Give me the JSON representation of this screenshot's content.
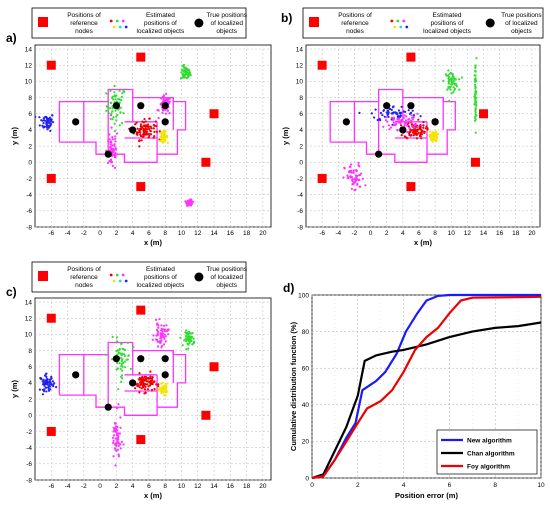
{
  "legend": {
    "reference_nodes": [
      "Positions of",
      "reference",
      "nodes"
    ],
    "estimated_positions": [
      "Estimated",
      "positions of",
      "localized objects"
    ],
    "true_positions": [
      "True positions",
      "of localized",
      "objects"
    ]
  },
  "map_axes": {
    "xlabel": "x (m)",
    "ylabel": "y (m)",
    "xticks": [
      "-6",
      "-4",
      "-2",
      "0",
      "2",
      "4",
      "6",
      "8",
      "10",
      "12",
      "14",
      "16",
      "18",
      "20"
    ],
    "yticks": [
      "-8",
      "-6",
      "-4",
      "-2",
      "0",
      "2",
      "4",
      "6",
      "8",
      "10",
      "12",
      "14"
    ],
    "xlim": [
      -8,
      21
    ],
    "ylim": [
      -8,
      14.5
    ]
  },
  "panels": [
    {
      "letter": "a)"
    },
    {
      "letter": "b)"
    },
    {
      "letter": "c)"
    },
    {
      "letter": "d)"
    }
  ],
  "colors": {
    "reference": "#ff0000",
    "true": "#000000",
    "floorplan": "#ff33ff",
    "green": "#33dd33",
    "blue": "#2222ee",
    "red": "#ee0000",
    "yellow": "#f2e600",
    "cyan": "#22dddd",
    "magenta": "#ff33ff"
  },
  "chart_data": [
    {
      "type": "scatter",
      "panel": "a)",
      "xlabel": "x (m)",
      "ylabel": "y (m)",
      "xlim": [
        -8,
        21
      ],
      "ylim": [
        -8,
        14.5
      ],
      "reference_nodes": [
        [
          -6,
          12
        ],
        [
          5,
          13
        ],
        [
          14,
          6
        ],
        [
          13,
          0
        ],
        [
          -6,
          -2
        ],
        [
          5,
          -3
        ]
      ],
      "true_positions": [
        [
          -3,
          5
        ],
        [
          2,
          7
        ],
        [
          5,
          7
        ],
        [
          8,
          7
        ],
        [
          1,
          1
        ],
        [
          4,
          4
        ],
        [
          8,
          5
        ]
      ],
      "estimated_clusters": [
        {
          "color": "green",
          "center": [
            2,
            7
          ],
          "spread": [
            1,
            2
          ]
        },
        {
          "color": "green",
          "center": [
            10.5,
            11
          ],
          "spread": [
            0.5,
            0.7
          ]
        },
        {
          "color": "blue",
          "center": [
            -6.5,
            5
          ],
          "spread": [
            0.7,
            0.9
          ]
        },
        {
          "color": "red",
          "center": [
            5.5,
            4
          ],
          "spread": [
            1.1,
            1
          ]
        },
        {
          "color": "yellow",
          "center": [
            7.8,
            3.2
          ],
          "spread": [
            0.4,
            0.5
          ]
        },
        {
          "color": "magenta",
          "center": [
            1.5,
            1.5
          ],
          "spread": [
            0.6,
            2.2
          ]
        },
        {
          "color": "magenta",
          "center": [
            8,
            7
          ],
          "spread": [
            0.6,
            1
          ]
        },
        {
          "color": "magenta",
          "center": [
            11,
            -5
          ],
          "spread": [
            0.3,
            0.3
          ]
        }
      ]
    },
    {
      "type": "scatter",
      "panel": "b)",
      "xlabel": "x (m)",
      "ylabel": "y (m)",
      "xlim": [
        -8,
        21
      ],
      "ylim": [
        -8,
        14.5
      ],
      "reference_nodes": [
        [
          -6,
          12
        ],
        [
          5,
          13
        ],
        [
          14,
          6
        ],
        [
          13,
          0
        ],
        [
          -6,
          -2
        ],
        [
          5,
          -3
        ]
      ],
      "true_positions": [
        [
          -3,
          5
        ],
        [
          2,
          7
        ],
        [
          5,
          7
        ],
        [
          8,
          5
        ],
        [
          1,
          1
        ],
        [
          4,
          4
        ],
        [
          8,
          5
        ]
      ],
      "estimated_clusters": [
        {
          "color": "green",
          "center": [
            10,
            10
          ],
          "spread": [
            0.7,
            1
          ]
        },
        {
          "color": "green",
          "center": [
            13,
            8
          ],
          "spread": [
            0.1,
            4
          ]
        },
        {
          "color": "blue",
          "center": [
            3,
            6
          ],
          "spread": [
            2.5,
            0.8
          ]
        },
        {
          "color": "red",
          "center": [
            5.5,
            4
          ],
          "spread": [
            1.1,
            0.9
          ]
        },
        {
          "color": "yellow",
          "center": [
            7.8,
            3.2
          ],
          "spread": [
            0.4,
            0.5
          ]
        },
        {
          "color": "magenta",
          "center": [
            -2,
            -2
          ],
          "spread": [
            1,
            1.5
          ]
        },
        {
          "color": "magenta",
          "center": [
            4,
            5
          ],
          "spread": [
            1.8,
            0.8
          ]
        }
      ]
    },
    {
      "type": "scatter",
      "panel": "c)",
      "xlabel": "x (m)",
      "ylabel": "y (m)",
      "xlim": [
        -8,
        21
      ],
      "ylim": [
        -8,
        14.5
      ],
      "reference_nodes": [
        [
          -6,
          12
        ],
        [
          5,
          13
        ],
        [
          14,
          6
        ],
        [
          13,
          0
        ],
        [
          -6,
          -2
        ],
        [
          5,
          -3
        ]
      ],
      "true_positions": [
        [
          -3,
          5
        ],
        [
          2,
          7
        ],
        [
          5,
          7
        ],
        [
          8,
          7
        ],
        [
          1,
          1
        ],
        [
          4,
          4
        ],
        [
          8,
          5
        ]
      ],
      "estimated_clusters": [
        {
          "color": "green",
          "center": [
            2.5,
            7
          ],
          "spread": [
            1,
            2
          ]
        },
        {
          "color": "green",
          "center": [
            11,
            9.5
          ],
          "spread": [
            0.5,
            0.8
          ]
        },
        {
          "color": "blue",
          "center": [
            -6.5,
            4
          ],
          "spread": [
            0.7,
            0.8
          ]
        },
        {
          "color": "red",
          "center": [
            5.5,
            4
          ],
          "spread": [
            1,
            0.9
          ]
        },
        {
          "color": "yellow",
          "center": [
            7.8,
            3.2
          ],
          "spread": [
            0.4,
            0.5
          ]
        },
        {
          "color": "magenta",
          "center": [
            2,
            -3
          ],
          "spread": [
            0.5,
            2.5
          ]
        },
        {
          "color": "magenta",
          "center": [
            7.5,
            10
          ],
          "spread": [
            0.7,
            1.2
          ]
        }
      ]
    },
    {
      "type": "line",
      "panel": "d)",
      "xlabel": "Position error (m)",
      "ylabel": "Cumulative distribution function (%)",
      "xlim": [
        0,
        10
      ],
      "ylim": [
        0,
        100
      ],
      "xticks": [
        "0",
        "2",
        "4",
        "6",
        "8",
        "10"
      ],
      "yticks": [
        "0",
        "20",
        "40",
        "60",
        "80",
        "100"
      ],
      "grid": true,
      "legend_position": "bottom-right",
      "series": [
        {
          "name": "New algorithm",
          "color": "#1a1aff",
          "points": [
            [
              0,
              0
            ],
            [
              0.5,
              1
            ],
            [
              1,
              10
            ],
            [
              1.5,
              22
            ],
            [
              1.9,
              30
            ],
            [
              2.2,
              48
            ],
            [
              2.8,
              53
            ],
            [
              3.2,
              58
            ],
            [
              3.7,
              68
            ],
            [
              4.1,
              80
            ],
            [
              4.6,
              90
            ],
            [
              5.0,
              97
            ],
            [
              5.5,
              99.5
            ],
            [
              6,
              100
            ],
            [
              10,
              100
            ]
          ]
        },
        {
          "name": "Chan algorithm",
          "color": "#000000",
          "points": [
            [
              0,
              0
            ],
            [
              0.5,
              2
            ],
            [
              1,
              15
            ],
            [
              1.5,
              28
            ],
            [
              2,
              45
            ],
            [
              2.3,
              64
            ],
            [
              2.8,
              67
            ],
            [
              3.5,
              69
            ],
            [
              4,
              70
            ],
            [
              5,
              73
            ],
            [
              6,
              77
            ],
            [
              7,
              80
            ],
            [
              8,
              82
            ],
            [
              9,
              83
            ],
            [
              10,
              85
            ]
          ]
        },
        {
          "name": "Foy algorithm",
          "color": "#ee0000",
          "points": [
            [
              0,
              0
            ],
            [
              0.5,
              1
            ],
            [
              1,
              10
            ],
            [
              1.5,
              20
            ],
            [
              2,
              30
            ],
            [
              2.4,
              38
            ],
            [
              3,
              42
            ],
            [
              3.5,
              48
            ],
            [
              4,
              58
            ],
            [
              4.5,
              70
            ],
            [
              5,
              77
            ],
            [
              5.5,
              82
            ],
            [
              6,
              90
            ],
            [
              6.5,
              97
            ],
            [
              7,
              98.5
            ],
            [
              10,
              99
            ]
          ]
        }
      ]
    }
  ]
}
